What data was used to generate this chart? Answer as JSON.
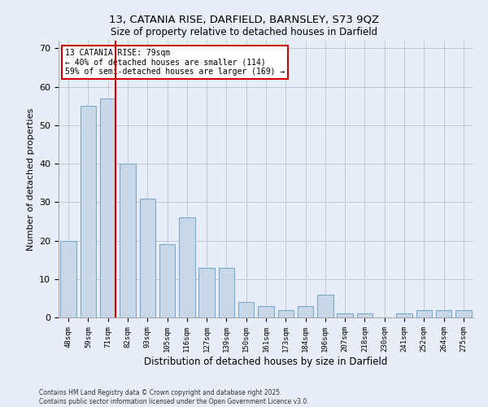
{
  "title1": "13, CATANIA RISE, DARFIELD, BARNSLEY, S73 9QZ",
  "title2": "Size of property relative to detached houses in Darfield",
  "xlabel": "Distribution of detached houses by size in Darfield",
  "ylabel": "Number of detached properties",
  "categories": [
    "48sqm",
    "59sqm",
    "71sqm",
    "82sqm",
    "93sqm",
    "105sqm",
    "116sqm",
    "127sqm",
    "139sqm",
    "150sqm",
    "161sqm",
    "173sqm",
    "184sqm",
    "196sqm",
    "207sqm",
    "218sqm",
    "230sqm",
    "241sqm",
    "252sqm",
    "264sqm",
    "275sqm"
  ],
  "values": [
    20,
    55,
    57,
    40,
    31,
    19,
    26,
    13,
    13,
    4,
    3,
    2,
    3,
    6,
    1,
    1,
    0,
    1,
    2,
    2,
    2
  ],
  "bar_color": "#c8d8e8",
  "bar_edge_color": "#7aaac8",
  "highlight_line_index": 2,
  "annotation_text": "13 CATANIA RISE: 79sqm\n← 40% of detached houses are smaller (114)\n59% of semi-detached houses are larger (169) →",
  "annotation_box_color": "#ffffff",
  "annotation_border_color": "#cc0000",
  "ylim": [
    0,
    72
  ],
  "yticks": [
    0,
    10,
    20,
    30,
    40,
    50,
    60,
    70
  ],
  "grid_color": "#c0c8d8",
  "background_color": "#e8eef8",
  "footer1": "Contains HM Land Registry data © Crown copyright and database right 2025.",
  "footer2": "Contains public sector information licensed under the Open Government Licence v3.0."
}
